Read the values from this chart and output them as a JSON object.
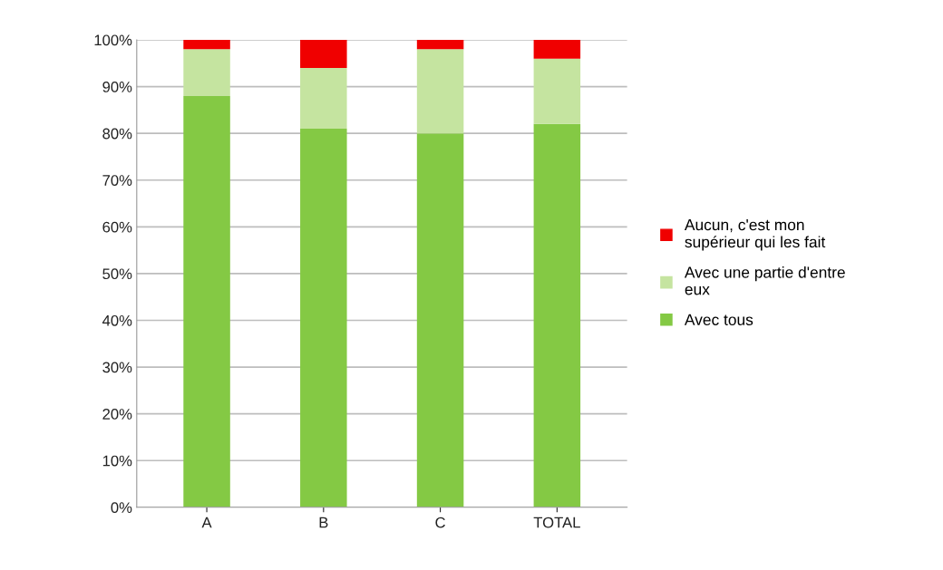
{
  "chart_data": {
    "type": "bar",
    "stacked": true,
    "categories": [
      "A",
      "B",
      "C",
      "TOTAL"
    ],
    "series": [
      {
        "name": "Avec tous",
        "color": "#84c944",
        "values": [
          88,
          81,
          80,
          82
        ]
      },
      {
        "name": "Avec une partie d'entre eux",
        "color": "#c5e4a0",
        "values": [
          10,
          13,
          18,
          14
        ]
      },
      {
        "name": "Aucun, c'est mon supérieur qui les fait",
        "color": "#f00000",
        "values": [
          2,
          6,
          2,
          4
        ]
      }
    ],
    "ylim": [
      0,
      100
    ],
    "yticks": [
      {
        "value": 0,
        "label": "0%"
      },
      {
        "value": 10,
        "label": "10%"
      },
      {
        "value": 20,
        "label": "20%"
      },
      {
        "value": 30,
        "label": "30%"
      },
      {
        "value": 40,
        "label": "40%"
      },
      {
        "value": 50,
        "label": "50%"
      },
      {
        "value": 60,
        "label": "60%"
      },
      {
        "value": 70,
        "label": "70%"
      },
      {
        "value": 80,
        "label": "80%"
      },
      {
        "value": 90,
        "label": "90%"
      },
      {
        "value": 100,
        "label": "100%"
      }
    ],
    "grid": "y",
    "legend": "right"
  }
}
